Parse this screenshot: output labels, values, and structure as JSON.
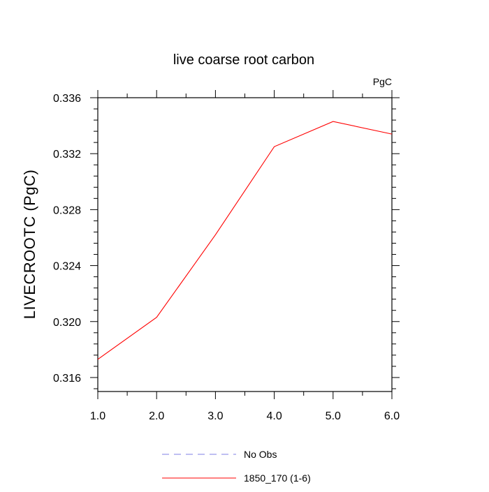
{
  "chart_data": {
    "type": "line",
    "title": "live coarse root carbon",
    "units": "PgC",
    "xlabel": "",
    "ylabel": "LIVECROOTC  (PgC)",
    "xlim": [
      1.0,
      6.0
    ],
    "ylim": [
      0.315,
      0.336
    ],
    "x_ticks": [
      1.0,
      2.0,
      3.0,
      4.0,
      5.0,
      6.0
    ],
    "x_tick_labels": [
      "1.0",
      "2.0",
      "3.0",
      "4.0",
      "5.0",
      "6.0"
    ],
    "y_ticks": [
      0.316,
      0.32,
      0.324,
      0.328,
      0.332,
      0.336
    ],
    "y_tick_labels": [
      "0.316",
      "0.320",
      "0.324",
      "0.328",
      "0.332",
      "0.336"
    ],
    "y_minor_step": 0.0008,
    "x_minor_step": 0.5,
    "grid": false,
    "legend_position": "bottom-center",
    "series": [
      {
        "name": "No Obs",
        "color": "#7f7fe6",
        "dash": "dashed",
        "x": [],
        "values": []
      },
      {
        "name": "1850_170 (1-6)",
        "color": "#ff0000",
        "dash": "solid",
        "x": [
          1.0,
          2.0,
          3.0,
          4.0,
          5.0,
          6.0
        ],
        "values": [
          0.3173,
          0.3203,
          0.3262,
          0.3325,
          0.3343,
          0.3334
        ]
      }
    ]
  }
}
